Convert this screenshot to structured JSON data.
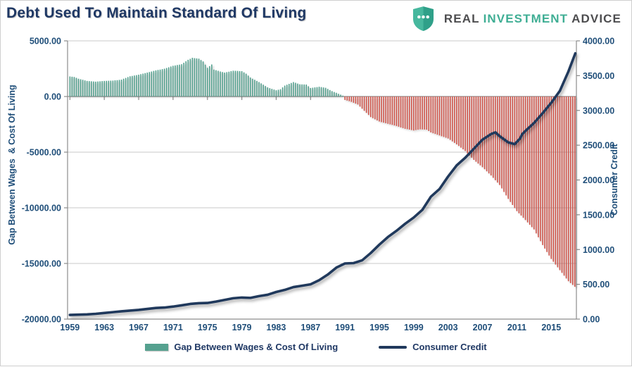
{
  "header": {
    "title": "Debt Used To Maintain Standard Of Living",
    "logo": {
      "icon": "shield-icon",
      "words": [
        {
          "text": "REAL",
          "color": "#4d4d4f"
        },
        {
          "text": "INVESTMENT",
          "color": "#3FAE94"
        },
        {
          "text": "ADVICE",
          "color": "#4d4d4f"
        }
      ],
      "shield_left_color": "#47B89E",
      "shield_right_color": "#2FA089"
    }
  },
  "colors": {
    "title_text": "#1F3864",
    "axis_text": "#1F4E79",
    "grid": "#C9C9C9",
    "axis_line": "#8C8C8C",
    "bar_positive": "#55A18F",
    "bar_negative": "#D0544A",
    "line": "#20395C",
    "background": "#FFFFFF"
  },
  "chart_data": {
    "type": "combo-bar-line",
    "title": "Debt Used To Maintain Standard Of Living",
    "grid": true,
    "legend_position": "bottom",
    "bar_interval_years": 0.25,
    "x_axis": {
      "min": 1958.85,
      "max": 2018.05,
      "ticks": [
        1959,
        1963,
        1967,
        1971,
        1975,
        1979,
        1983,
        1987,
        1991,
        1995,
        1999,
        2003,
        2007,
        2011,
        2015
      ]
    },
    "left_axis": {
      "title": "Gap Between Wages  & Cost Of Living",
      "min": -20000,
      "max": 5000,
      "ticks": [
        5000,
        0,
        -5000,
        -10000,
        -15000,
        -20000
      ],
      "tick_format_decimals": 2
    },
    "right_axis": {
      "title": "Consumer Credit",
      "min": 0,
      "max": 4000,
      "ticks": [
        4000,
        3500,
        3000,
        2500,
        2000,
        1500,
        1000,
        500,
        0
      ],
      "tick_format_decimals": 2
    },
    "legend": [
      {
        "label": "Gap Between Wages & Cost Of Living",
        "swatch": "bar",
        "color": "#55A18F"
      },
      {
        "label": "Consumer Credit",
        "swatch": "line",
        "color": "#20395C"
      }
    ],
    "series": [
      {
        "name": "Gap Between Wages & Cost Of Living",
        "type": "bar",
        "axis": "left",
        "color_positive": "#55A18F",
        "color_negative": "#D0544A",
        "points": [
          [
            1959,
            1800
          ],
          [
            1959.5,
            1760
          ],
          [
            1960,
            1600
          ],
          [
            1961,
            1400
          ],
          [
            1962,
            1340
          ],
          [
            1963,
            1400
          ],
          [
            1964,
            1430
          ],
          [
            1965,
            1520
          ],
          [
            1966,
            1820
          ],
          [
            1967,
            1960
          ],
          [
            1968,
            2150
          ],
          [
            1969,
            2350
          ],
          [
            1970,
            2500
          ],
          [
            1971,
            2760
          ],
          [
            1972,
            2900
          ],
          [
            1972.75,
            3300
          ],
          [
            1973.25,
            3480
          ],
          [
            1974,
            3400
          ],
          [
            1974.5,
            3150
          ],
          [
            1975,
            2580
          ],
          [
            1975.5,
            2880
          ],
          [
            1975.75,
            2420
          ],
          [
            1976.5,
            2250
          ],
          [
            1977,
            2150
          ],
          [
            1978,
            2320
          ],
          [
            1979,
            2280
          ],
          [
            1979.5,
            2050
          ],
          [
            1980,
            1700
          ],
          [
            1981,
            1300
          ],
          [
            1982,
            820
          ],
          [
            1983,
            560
          ],
          [
            1983.5,
            660
          ],
          [
            1984,
            980
          ],
          [
            1985,
            1300
          ],
          [
            1985.75,
            1100
          ],
          [
            1986.5,
            1080
          ],
          [
            1987,
            760
          ],
          [
            1988,
            880
          ],
          [
            1988.75,
            780
          ],
          [
            1989.5,
            480
          ],
          [
            1990,
            330
          ],
          [
            1990.75,
            80
          ],
          [
            1991,
            -300
          ],
          [
            1991.75,
            -480
          ],
          [
            1992.5,
            -720
          ],
          [
            1993,
            -1100
          ],
          [
            1994,
            -1850
          ],
          [
            1995,
            -2250
          ],
          [
            1996,
            -2450
          ],
          [
            1997,
            -2650
          ],
          [
            1998,
            -2900
          ],
          [
            1999,
            -3050
          ],
          [
            1999.75,
            -2950
          ],
          [
            2000.5,
            -2980
          ],
          [
            2001,
            -3230
          ],
          [
            2002,
            -3500
          ],
          [
            2003,
            -3770
          ],
          [
            2004,
            -4300
          ],
          [
            2005,
            -4900
          ],
          [
            2006,
            -5700
          ],
          [
            2007,
            -6350
          ],
          [
            2008,
            -7100
          ],
          [
            2009,
            -7950
          ],
          [
            2010,
            -9200
          ],
          [
            2011,
            -10300
          ],
          [
            2012,
            -11100
          ],
          [
            2013,
            -11950
          ],
          [
            2014,
            -13350
          ],
          [
            2015,
            -14600
          ],
          [
            2016,
            -15600
          ],
          [
            2017,
            -16600
          ],
          [
            2017.75,
            -17100
          ]
        ]
      },
      {
        "name": "Consumer Credit",
        "type": "line",
        "axis": "right",
        "color": "#20395C",
        "points": [
          [
            1959,
            60
          ],
          [
            1960,
            64
          ],
          [
            1961,
            68
          ],
          [
            1962,
            76
          ],
          [
            1963,
            88
          ],
          [
            1964,
            100
          ],
          [
            1965,
            112
          ],
          [
            1966,
            122
          ],
          [
            1967,
            132
          ],
          [
            1968,
            146
          ],
          [
            1969,
            160
          ],
          [
            1970,
            166
          ],
          [
            1971,
            180
          ],
          [
            1972,
            198
          ],
          [
            1973,
            218
          ],
          [
            1974,
            228
          ],
          [
            1975,
            232
          ],
          [
            1976,
            252
          ],
          [
            1977,
            276
          ],
          [
            1978,
            300
          ],
          [
            1979,
            310
          ],
          [
            1980,
            305
          ],
          [
            1981,
            330
          ],
          [
            1982,
            350
          ],
          [
            1983,
            390
          ],
          [
            1984,
            420
          ],
          [
            1985,
            460
          ],
          [
            1986,
            480
          ],
          [
            1987,
            500
          ],
          [
            1988,
            560
          ],
          [
            1989,
            640
          ],
          [
            1990,
            740
          ],
          [
            1991,
            800
          ],
          [
            1992,
            805
          ],
          [
            1993,
            845
          ],
          [
            1994,
            950
          ],
          [
            1995,
            1070
          ],
          [
            1996,
            1180
          ],
          [
            1997,
            1270
          ],
          [
            1998,
            1370
          ],
          [
            1999,
            1460
          ],
          [
            2000,
            1570
          ],
          [
            2001,
            1760
          ],
          [
            2002,
            1870
          ],
          [
            2003,
            2050
          ],
          [
            2004,
            2210
          ],
          [
            2005,
            2320
          ],
          [
            2006,
            2450
          ],
          [
            2007,
            2580
          ],
          [
            2008,
            2660
          ],
          [
            2008.5,
            2685
          ],
          [
            2009,
            2630
          ],
          [
            2010,
            2540
          ],
          [
            2010.75,
            2515
          ],
          [
            2011.4,
            2600
          ],
          [
            2011.6,
            2655
          ],
          [
            2012,
            2705
          ],
          [
            2013,
            2820
          ],
          [
            2014,
            2960
          ],
          [
            2015,
            3110
          ],
          [
            2016,
            3280
          ],
          [
            2017,
            3560
          ],
          [
            2017.8,
            3820
          ]
        ]
      }
    ]
  }
}
